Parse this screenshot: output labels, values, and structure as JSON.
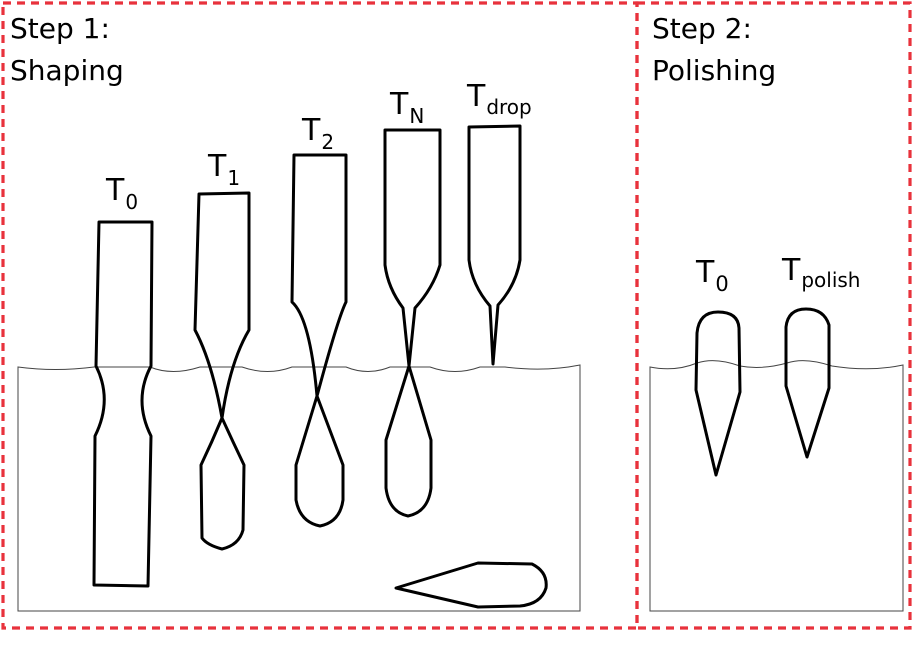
{
  "panels": [
    {
      "step": "Step 1:",
      "name": "Shaping"
    },
    {
      "step": "Step 2:",
      "name": "Polishing"
    }
  ],
  "shaping_tips": [
    {
      "main": "T",
      "sub": "0"
    },
    {
      "main": "T",
      "sub": "1"
    },
    {
      "main": "T",
      "sub": "2"
    },
    {
      "main": "T",
      "sub": "N"
    },
    {
      "main": "T",
      "sub": "drop"
    }
  ],
  "polishing_tips": [
    {
      "main": "T",
      "sub": "0"
    },
    {
      "main": "T",
      "sub": "polish"
    }
  ],
  "colors": {
    "frame": "#e8323c",
    "outline": "#000000",
    "etchant_surface": "#444444"
  }
}
